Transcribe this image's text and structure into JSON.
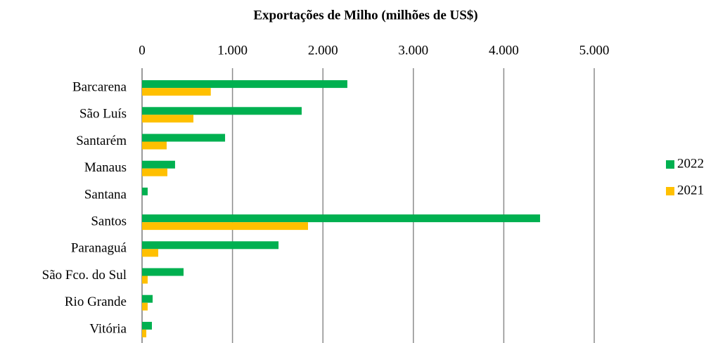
{
  "chart_data": {
    "type": "hbar",
    "title": "Exportações de Milho  (milhões de US$)",
    "categories": [
      "Barcarena",
      "São Luís",
      "Santarém",
      "Manaus",
      "Santana",
      "Santos",
      "Paranaguá",
      "São Fco. do Sul",
      "Rio Grande",
      "Vitória"
    ],
    "series": [
      {
        "name": "2022",
        "color": "#00b050",
        "values": [
          2270,
          1765,
          918,
          365,
          62,
          4401,
          1509,
          459,
          117,
          109
        ]
      },
      {
        "name": "2021",
        "color": "#ffc000",
        "values": [
          760,
          568,
          272,
          280,
          0,
          1835,
          179,
          62,
          62,
          47
        ]
      }
    ],
    "xlim": [
      0,
      5000
    ],
    "xticks": [
      0,
      {
        "value": 1000,
        "label": "1.000"
      },
      {
        "value": 2000,
        "label": "2.000"
      },
      {
        "value": 3000,
        "label": "3.000"
      },
      {
        "value": 4000,
        "label": "4.000"
      },
      {
        "value": 5000,
        "label": "5.000"
      }
    ],
    "grid": true,
    "legend": "right"
  }
}
